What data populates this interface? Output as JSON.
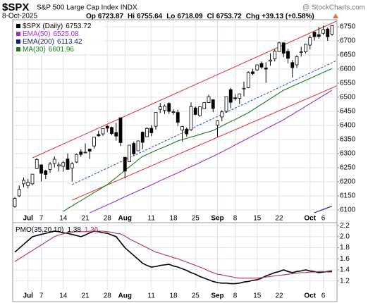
{
  "header": {
    "symbol": "$SPX",
    "name": "S&P 500 Large Cap Index INDX",
    "source": "@ StockCharts.com",
    "date": "8-Oct-2025",
    "quote_labels": [
      "Op",
      "Hi",
      "Lo",
      "Cl",
      "Chg"
    ],
    "change": "+39.13 (+0.58%)"
  },
  "chart_data": [
    {
      "type": "candlestick",
      "name": "$SPX (Daily)",
      "categories": [
        null,
        null,
        null,
        "Jul",
        null,
        null,
        "7",
        null,
        null,
        null,
        null,
        "14",
        null,
        null,
        null,
        null,
        "21",
        null,
        null,
        null,
        null,
        "28",
        null,
        null,
        null,
        "Aug",
        null,
        null,
        null,
        null,
        null,
        "11",
        null,
        null,
        null,
        null,
        "18",
        null,
        null,
        null,
        null,
        "25",
        null,
        null,
        null,
        null,
        "Sep",
        null,
        null,
        null,
        "8",
        null,
        null,
        null,
        null,
        "15",
        null,
        null,
        null,
        null,
        "22",
        null,
        null,
        null,
        null,
        null,
        null,
        "Oct",
        null,
        null,
        "6",
        null,
        null
      ],
      "open": [
        6112,
        6150,
        6193,
        6187,
        6193,
        6247,
        6260,
        6239,
        6244,
        6265,
        6256,
        6255,
        6281,
        6249,
        6270,
        6306,
        6305,
        6316,
        6327,
        6368,
        6370,
        6397,
        6393,
        6375,
        6427,
        6287,
        6271,
        6336,
        6310,
        6376,
        6360,
        6390,
        6397,
        6457,
        6453,
        6478,
        6446,
        6446,
        6384,
        6387,
        6385,
        6462,
        6435,
        6459,
        6481,
        6491,
        6401,
        6430,
        6450,
        6527,
        6498,
        6496,
        6531,
        6534,
        6590,
        6597,
        6620,
        6604,
        6628,
        6636,
        6662,
        6693,
        6663,
        6623,
        6615,
        6661,
        6661,
        6685,
        6731,
        6722,
        6727,
        6742,
        6723.87
      ],
      "high": [
        6146,
        6187,
        6215,
        6210,
        6228,
        6285,
        6262,
        6243,
        6270,
        6290,
        6269,
        6273,
        6301,
        6270,
        6300,
        6315,
        6336,
        6316,
        6360,
        6381,
        6390,
        6401,
        6396,
        6409,
        6428,
        6288,
        6330,
        6343,
        6347,
        6379,
        6395,
        6401,
        6446,
        6480,
        6474,
        6482,
        6457,
        6456,
        6398,
        6393,
        6482,
        6467,
        6468,
        6482,
        6509,
        6493,
        6418,
        6454,
        6502,
        6533,
        6511,
        6513,
        6555,
        6592,
        6601,
        6616,
        6627,
        6624,
        6656,
        6671,
        6697,
        6693,
        6672,
        6632,
        6649,
        6679,
        6689,
        6719,
        6733,
        6750,
        6754,
        6747,
        6755.64
      ],
      "low": [
        6108,
        6146,
        6181,
        6177,
        6188,
        6245,
        6201,
        6210,
        6232,
        6251,
        6237,
        6236,
        6244,
        6201,
        6267,
        6289,
        6303,
        6281,
        6318,
        6360,
        6363,
        6376,
        6365,
        6346,
        6327,
        6212,
        6271,
        6294,
        6310,
        6316,
        6359,
        6362,
        6385,
        6444,
        6441,
        6441,
        6438,
        6398,
        6343,
        6360,
        6380,
        6437,
        6431,
        6458,
        6480,
        6447,
        6360,
        6415,
        6445,
        6461,
        6488,
        6476,
        6503,
        6532,
        6579,
        6593,
        6601,
        6551,
        6612,
        6627,
        6661,
        6642,
        6620,
        6570,
        6604,
        6644,
        6656,
        6670,
        6701,
        6708,
        6722,
        6700,
        6718.09
      ],
      "close": [
        6141,
        6173,
        6205,
        6198,
        6227,
        6279,
        6230,
        6226,
        6263,
        6280,
        6260,
        6268,
        6244,
        6264,
        6297,
        6297,
        6305,
        6309,
        6359,
        6363,
        6389,
        6390,
        6371,
        6362,
        6339,
        6238,
        6330,
        6299,
        6345,
        6340,
        6389,
        6374,
        6446,
        6466,
        6469,
        6450,
        6449,
        6411,
        6396,
        6370,
        6467,
        6439,
        6466,
        6481,
        6502,
        6460,
        6416,
        6448,
        6502,
        6482,
        6495,
        6512,
        6532,
        6588,
        6584,
        6615,
        6607,
        6600,
        6632,
        6664,
        6693,
        6656,
        6638,
        6605,
        6644,
        6661,
        6688,
        6711,
        6715,
        6716,
        6740,
        6714.59,
        6753.72
      ],
      "up_color": "#ffffff",
      "down_color": "#000000",
      "overlays": [
        {
          "name": "EMA(50)",
          "color": "#9b30d0",
          "values": [
            null,
            null,
            null,
            null,
            null,
            null,
            null,
            null,
            null,
            null,
            null,
            null,
            null,
            null,
            null,
            null,
            null,
            6090,
            6097,
            6104,
            6111,
            6118,
            6125,
            6132,
            6140,
            6147,
            6154,
            6161,
            6168,
            6175,
            6182,
            6189,
            6196,
            6204,
            6211,
            6218,
            6225,
            6232,
            6239,
            6247,
            6254,
            6261,
            6268,
            6276,
            6283,
            6290,
            6298,
            6306,
            6314,
            6322,
            6331,
            6339,
            6347,
            6355,
            6363,
            6371,
            6379,
            6388,
            6396,
            6404,
            6412,
            6420,
            6430,
            6439,
            6449,
            6458,
            6468,
            6477,
            6487,
            6496,
            6506,
            6515,
            6525.08
          ]
        },
        {
          "name": "EMA(200)",
          "color": "#1a1a80",
          "values": [
            null,
            null,
            null,
            null,
            null,
            null,
            null,
            null,
            null,
            null,
            null,
            null,
            null,
            null,
            null,
            null,
            null,
            null,
            null,
            null,
            null,
            null,
            null,
            null,
            null,
            null,
            null,
            null,
            null,
            null,
            null,
            null,
            null,
            null,
            null,
            null,
            null,
            null,
            null,
            null,
            null,
            null,
            null,
            null,
            null,
            null,
            null,
            null,
            null,
            null,
            null,
            null,
            null,
            null,
            null,
            null,
            null,
            null,
            null,
            null,
            null,
            null,
            null,
            null,
            null,
            null,
            null,
            null,
            6090,
            6096,
            6102,
            6108,
            6113.42
          ]
        },
        {
          "name": "MA(30)",
          "color": "#1e7a1e",
          "values": [
            null,
            null,
            null,
            null,
            null,
            null,
            null,
            null,
            null,
            null,
            null,
            6095,
            6105,
            6114,
            6124,
            6133,
            6143,
            6152,
            6162,
            6171,
            6181,
            6190,
            6203,
            6215,
            6228,
            6240,
            6253,
            6265,
            6278,
            6290,
            6297,
            6304,
            6311,
            6318,
            6324,
            6331,
            6338,
            6345,
            6350,
            6354,
            6359,
            6363,
            6368,
            6373,
            6377,
            6382,
            6390,
            6398,
            6406,
            6414,
            6421,
            6429,
            6437,
            6445,
            6455,
            6465,
            6475,
            6485,
            6495,
            6505,
            6515,
            6525,
            6532,
            6539,
            6546,
            6553,
            6560,
            6567,
            6574,
            6581,
            6588,
            6595,
            6601.96
          ]
        }
      ],
      "trendlines": [
        {
          "color": "#e03030",
          "dashed": false,
          "x": [
            4,
            73
          ],
          "values": [
            6285,
            6770
          ]
        },
        {
          "color": "#e03030",
          "dashed": false,
          "x": [
            13,
            73
          ],
          "values": [
            6135,
            6540
          ]
        },
        {
          "color": "#2a3fcc",
          "dashed": true,
          "x": [
            13,
            73
          ],
          "values": [
            6190,
            6630
          ]
        }
      ],
      "ylim": [
        6085,
        6775
      ],
      "yticks": [
        6100,
        6150,
        6200,
        6250,
        6300,
        6350,
        6400,
        6450,
        6500,
        6550,
        6600,
        6650,
        6700,
        6750
      ],
      "grid": true
    },
    {
      "type": "line",
      "title": "PMO(35,20,10)",
      "series": [
        {
          "color": "#000000",
          "values": [
            1.72,
            1.79,
            1.86,
            1.93,
            2.0,
            2.02,
            2.04,
            2.06,
            2.08,
            2.1,
            2.09,
            2.07,
            2.06,
            2.04,
            2.02,
            2.0,
            2.03,
            2.07,
            2.1,
            2.09,
            2.07,
            2.06,
            2.03,
            2.0,
            1.9,
            1.8,
            1.73,
            1.66,
            1.59,
            1.52,
            1.48,
            1.45,
            1.46,
            1.48,
            1.49,
            1.5,
            1.47,
            1.45,
            1.42,
            1.39,
            1.35,
            1.32,
            1.28,
            1.25,
            1.22,
            1.19,
            1.17,
            1.16,
            1.16,
            1.15,
            1.15,
            1.16,
            1.18,
            1.19,
            1.21,
            1.22,
            1.25,
            1.29,
            1.32,
            1.35,
            1.37,
            1.4,
            1.37,
            1.35,
            1.37,
            1.38,
            1.4,
            1.38,
            1.37,
            1.35,
            1.36,
            1.37,
            1.38
          ]
        },
        {
          "color": "#b0305a",
          "values": [
            1.55,
            1.6,
            1.65,
            1.7,
            1.75,
            1.8,
            1.85,
            1.9,
            1.95,
            2.0,
            2.03,
            2.05,
            2.08,
            2.08,
            2.09,
            2.09,
            2.09,
            2.1,
            2.1,
            2.1,
            2.1,
            2.09,
            2.08,
            2.06,
            2.05,
            2.01,
            1.96,
            1.92,
            1.88,
            1.84,
            1.8,
            1.76,
            1.72,
            1.7,
            1.67,
            1.65,
            1.62,
            1.6,
            1.57,
            1.54,
            1.51,
            1.48,
            1.45,
            1.42,
            1.38,
            1.35,
            1.32,
            1.31,
            1.29,
            1.28,
            1.26,
            1.25,
            1.25,
            1.25,
            1.25,
            1.25,
            1.26,
            1.27,
            1.28,
            1.29,
            1.3,
            1.31,
            1.32,
            1.33,
            1.34,
            1.35,
            1.35,
            1.36,
            1.36,
            1.37,
            1.37,
            1.36,
            1.36
          ]
        }
      ],
      "ylim": [
        1.03,
        2.24
      ],
      "yticks": [
        1.2,
        1.4,
        1.6,
        1.8,
        {
          "value": 2,
          "label": "2.0"
        },
        2.2
      ],
      "grid": true
    }
  ]
}
